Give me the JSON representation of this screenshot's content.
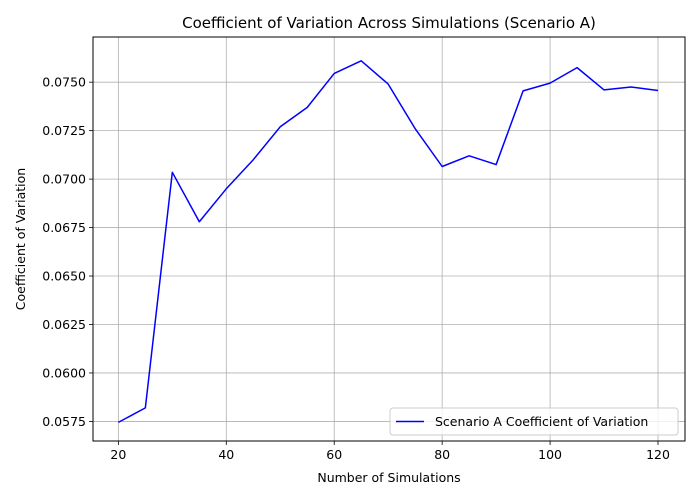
{
  "chart_data": {
    "type": "line",
    "title": "Coefficient of Variation Across Simulations (Scenario A)",
    "xlabel": "Number of Simulations",
    "ylabel": "Coefficient of Variation",
    "xlim": [
      15.3,
      125.0
    ],
    "ylim": [
      0.05649,
      0.07733
    ],
    "xticks": [
      20,
      40,
      60,
      80,
      100,
      120
    ],
    "xtick_labels": [
      "20",
      "40",
      "60",
      "80",
      "100",
      "120"
    ],
    "yticks": [
      0.0575,
      0.06,
      0.0625,
      0.065,
      0.0675,
      0.07,
      0.0725,
      0.075
    ],
    "ytick_labels": [
      "0.0575",
      "0.0600",
      "0.0625",
      "0.0650",
      "0.0675",
      "0.0700",
      "0.0725",
      "0.0750"
    ],
    "grid": true,
    "legend_position": "bottom-right",
    "series": [
      {
        "name": "Scenario A Coefficient of Variation",
        "color": "#0000ff",
        "x": [
          20,
          25,
          30,
          35,
          40,
          45,
          50,
          55,
          60,
          65,
          70,
          75,
          80,
          85,
          90,
          95,
          100,
          105,
          110,
          115,
          120
        ],
        "y": [
          0.05745,
          0.0582,
          0.07035,
          0.0678,
          0.0695,
          0.071,
          0.0727,
          0.0737,
          0.07545,
          0.0761,
          0.0749,
          0.0726,
          0.07065,
          0.0712,
          0.07075,
          0.07455,
          0.07495,
          0.07575,
          0.0746,
          0.07475,
          0.07457
        ]
      }
    ]
  }
}
